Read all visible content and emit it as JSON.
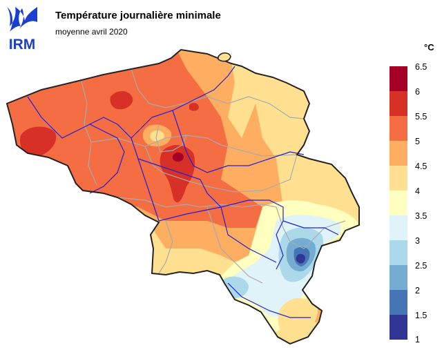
{
  "logo": {
    "text": "IRM"
  },
  "map": {
    "title": "Température journalière minimale",
    "subtitle": "moyenne avril 2020"
  },
  "legend": {
    "unit": "°C",
    "classes": [
      {
        "label": "6.5",
        "color": "#a50026"
      },
      {
        "label": "6",
        "color": "#d73027"
      },
      {
        "label": "5.5",
        "color": "#f46d43"
      },
      {
        "label": "5",
        "color": "#fdae61"
      },
      {
        "label": "4.5",
        "color": "#fee090"
      },
      {
        "label": "4",
        "color": "#ffffbf"
      },
      {
        "label": "3.5",
        "color": "#e0f3f8"
      },
      {
        "label": "3",
        "color": "#abd9e9"
      },
      {
        "label": "2.5",
        "color": "#74add1"
      },
      {
        "label": "2",
        "color": "#4575b4"
      },
      {
        "label": "1.5",
        "color": "#313695"
      },
      {
        "label": "1",
        "color": ""
      }
    ]
  },
  "colors": {
    "border": "#222222",
    "rivers": "#1f1fd6",
    "provinces": "#aaaaaa",
    "logo_blue": "#1a3fd0"
  }
}
